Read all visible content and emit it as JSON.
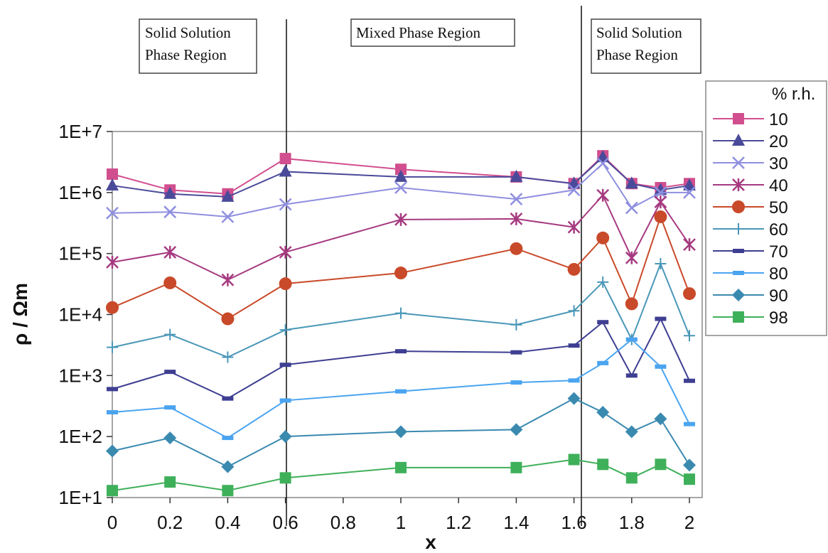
{
  "chart_data": {
    "type": "line",
    "title": "",
    "xlabel": "x",
    "ylabel": "ρ / Ωm",
    "y_scale": "log",
    "xlim": [
      0,
      2
    ],
    "ylim": [
      10,
      10000000
    ],
    "x_ticks": [
      "0",
      "0.2",
      "0.4",
      "0.6",
      "0.8",
      "1",
      "1.2",
      "1.4",
      "1.6",
      "1.8",
      "2"
    ],
    "y_ticks": [
      "1E+1",
      "1E+2",
      "1E+3",
      "1E+4",
      "1E+5",
      "1E+6",
      "1E+7"
    ],
    "x": [
      0,
      0.2,
      0.4,
      0.6,
      1.0,
      1.4,
      1.6,
      1.7,
      1.8,
      1.9,
      2.0
    ],
    "legend_title": "% r.h.",
    "legend_position": "right",
    "series": [
      {
        "name": "10",
        "marker": "square",
        "color": "#d14f8f",
        "values": [
          2000000,
          1100000,
          950000,
          3600000,
          2400000,
          1800000,
          1400000,
          4000000,
          1400000,
          1200000,
          1400000
        ]
      },
      {
        "name": "20",
        "marker": "triangle",
        "color": "#4a4a9a",
        "values": [
          1300000,
          950000,
          850000,
          2200000,
          1800000,
          1800000,
          1400000,
          3800000,
          1400000,
          1100000,
          1300000
        ]
      },
      {
        "name": "30",
        "marker": "x",
        "color": "#8f8fe0",
        "values": [
          460000,
          480000,
          400000,
          640000,
          1200000,
          780000,
          1100000,
          3000000,
          560000,
          1000000,
          1000000
        ]
      },
      {
        "name": "40",
        "marker": "star",
        "color": "#a63a80",
        "values": [
          72000,
          105000,
          37000,
          105000,
          360000,
          370000,
          270000,
          900000,
          85000,
          700000,
          140000
        ]
      },
      {
        "name": "50",
        "marker": "circle",
        "color": "#c94a2a",
        "values": [
          13000,
          33000,
          8500,
          32000,
          48000,
          120000,
          55000,
          180000,
          15000,
          400000,
          22000
        ]
      },
      {
        "name": "60",
        "marker": "plus",
        "color": "#4a97b8",
        "values": [
          2900,
          4700,
          2000,
          5600,
          10500,
          6800,
          11500,
          34000,
          3900,
          68000,
          4500
        ]
      },
      {
        "name": "70",
        "marker": "dash",
        "color": "#3e3e92",
        "values": [
          600,
          1150,
          420,
          1500,
          2500,
          2400,
          3100,
          7500,
          1000,
          8500,
          820
        ]
      },
      {
        "name": "80",
        "marker": "dash",
        "color": "#4aa4f0",
        "values": [
          250,
          300,
          95,
          390,
          550,
          770,
          830,
          1600,
          3900,
          1400,
          160
        ]
      },
      {
        "name": "90",
        "marker": "diamond",
        "color": "#3a8ab0",
        "values": [
          58,
          95,
          32,
          100,
          120,
          130,
          420,
          250,
          120,
          195,
          34
        ]
      },
      {
        "name": "98",
        "marker": "square",
        "color": "#3fb05a",
        "values": [
          13,
          18,
          13,
          21,
          31,
          31,
          42,
          35,
          21,
          35,
          20
        ]
      }
    ],
    "regions": [
      {
        "label_line1": "Solid Solution",
        "label_line2": "Phase Region"
      },
      {
        "label_line1": "Mixed Phase Region",
        "label_line2": ""
      },
      {
        "label_line1": "Solid Solution",
        "label_line2": "Phase Region"
      }
    ],
    "grid": false
  }
}
